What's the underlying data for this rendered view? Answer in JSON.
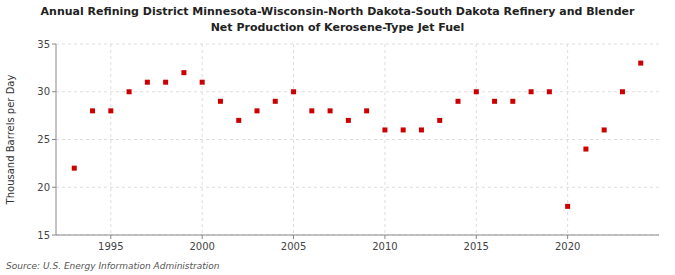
{
  "chart_data": {
    "type": "scatter",
    "title": "Annual Refining District Minnesota-Wisconsin-North Dakota-South Dakota Refinery and Blender",
    "subtitle": "Net Production of Kerosene-Type Jet Fuel",
    "y_label": "Thousand Barrels per Day",
    "annotations": [
      "Source: U.S. Energy Information Administration"
    ],
    "x": [
      1993,
      1994,
      1995,
      1996,
      1997,
      1998,
      1999,
      2000,
      2001,
      2002,
      2003,
      2004,
      2005,
      2006,
      2007,
      2008,
      2009,
      2010,
      2011,
      2012,
      2013,
      2014,
      2015,
      2016,
      2017,
      2018,
      2019,
      2020,
      2021,
      2022,
      2023,
      2024
    ],
    "values": [
      22.0,
      28.0,
      28.0,
      30.0,
      31.0,
      31.0,
      32.0,
      31.0,
      29.0,
      27.0,
      28.0,
      29.0,
      30.0,
      28.0,
      28.0,
      27.0,
      28.0,
      26.0,
      26.0,
      26.0,
      27.0,
      29.0,
      30.0,
      29.0,
      29.0,
      30.0,
      30.0,
      18.0,
      24.0,
      26.0,
      30.0,
      33.0
    ],
    "color": "#cc0000",
    "marker": "square",
    "xlim": [
      1992.0,
      2025.0
    ],
    "xticks": [
      1995,
      2000,
      2005,
      2010,
      2015,
      2020
    ],
    "ylim": [
      15,
      35
    ],
    "yticks": [
      15,
      20,
      25,
      30,
      35
    ],
    "grid": true
  }
}
